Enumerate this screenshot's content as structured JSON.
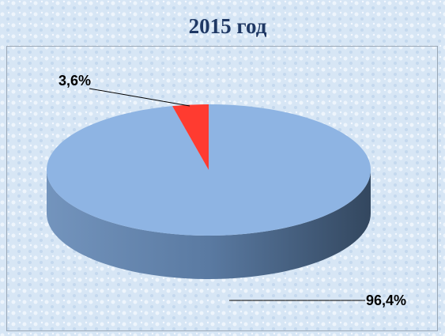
{
  "chart_data": {
    "type": "pie3d",
    "title": "2015 год",
    "values": [
      96.4,
      3.6
    ],
    "value_labels": [
      "96,4%",
      "3,6%"
    ],
    "colors": [
      "#8eb4e3",
      "#ff3b30"
    ]
  }
}
